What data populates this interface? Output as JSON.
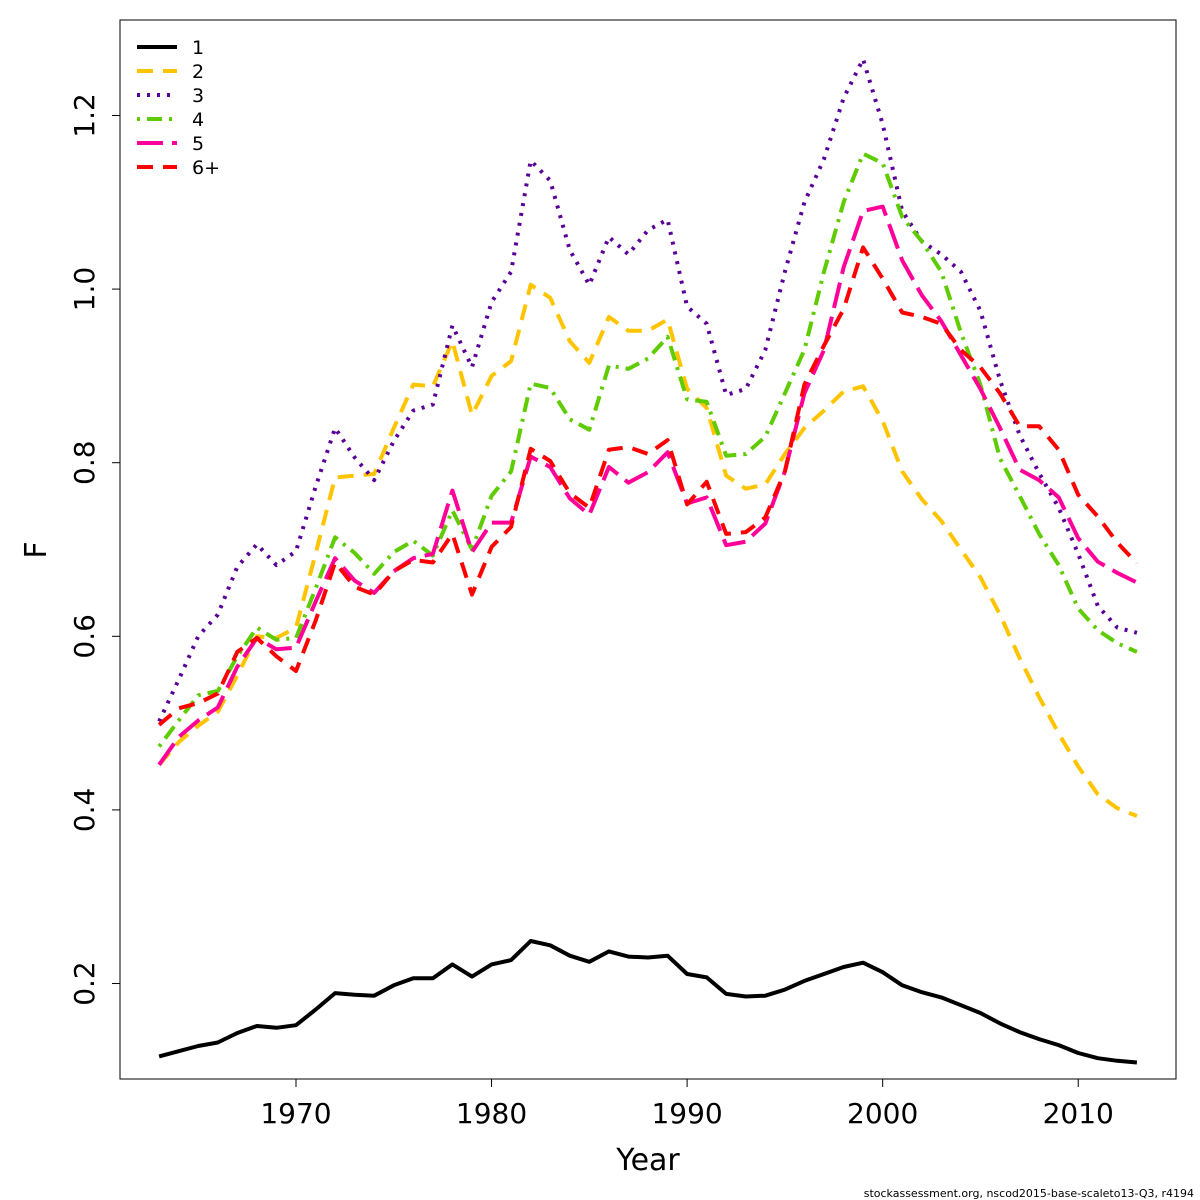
{
  "chart_data": {
    "type": "line",
    "title": "",
    "xlabel": "Year",
    "ylabel": "F",
    "xlim": [
      1961,
      2015
    ],
    "ylim": [
      0.09,
      1.31
    ],
    "x_ticks": [
      1970,
      1980,
      1990,
      2000,
      2010
    ],
    "y_ticks": [
      0.2,
      0.4,
      0.6,
      0.8,
      1.0,
      1.2
    ],
    "x_tick_labels": [
      "1970",
      "1980",
      "1990",
      "2000",
      "2010"
    ],
    "y_tick_labels": [
      "0.2",
      "0.4",
      "0.6",
      "0.8",
      "1.0",
      "1.2"
    ],
    "grid": false,
    "legend_position": "top-left",
    "x": [
      1963,
      1964,
      1965,
      1966,
      1967,
      1968,
      1969,
      1970,
      1971,
      1972,
      1973,
      1974,
      1975,
      1976,
      1977,
      1978,
      1979,
      1980,
      1981,
      1982,
      1983,
      1984,
      1985,
      1986,
      1987,
      1988,
      1989,
      1990,
      1991,
      1992,
      1993,
      1994,
      1995,
      1996,
      1997,
      1998,
      1999,
      2000,
      2001,
      2002,
      2003,
      2004,
      2005,
      2006,
      2007,
      2008,
      2009,
      2010,
      2011,
      2012,
      2013
    ],
    "series": [
      {
        "name": "1",
        "color": "#000000",
        "dash": "solid",
        "values": [
          0.116,
          0.122,
          0.128,
          0.132,
          0.143,
          0.151,
          0.149,
          0.152,
          0.17,
          0.189,
          0.187,
          0.186,
          0.198,
          0.206,
          0.206,
          0.222,
          0.208,
          0.222,
          0.227,
          0.249,
          0.244,
          0.232,
          0.225,
          0.237,
          0.231,
          0.23,
          0.232,
          0.211,
          0.207,
          0.188,
          0.185,
          0.186,
          0.193,
          0.203,
          0.211,
          0.219,
          0.224,
          0.213,
          0.198,
          0.19,
          0.184,
          0.175,
          0.166,
          0.154,
          0.144,
          0.136,
          0.129,
          0.12,
          0.114,
          0.111,
          0.109
        ]
      },
      {
        "name": "2",
        "color": "#FFC400",
        "dash": "dashed",
        "values": [
          0.452,
          0.478,
          0.497,
          0.513,
          0.555,
          0.6,
          0.598,
          0.61,
          0.695,
          0.783,
          0.785,
          0.787,
          0.84,
          0.89,
          0.888,
          0.94,
          0.855,
          0.9,
          0.917,
          1.005,
          0.99,
          0.94,
          0.915,
          0.968,
          0.952,
          0.952,
          0.965,
          0.885,
          0.863,
          0.785,
          0.77,
          0.775,
          0.81,
          0.84,
          0.86,
          0.882,
          0.888,
          0.848,
          0.79,
          0.758,
          0.733,
          0.7,
          0.668,
          0.625,
          0.575,
          0.53,
          0.488,
          0.45,
          0.418,
          0.402,
          0.393
        ]
      },
      {
        "name": "3",
        "color": "#5A0098",
        "dash": "dotted",
        "values": [
          0.502,
          0.55,
          0.6,
          0.625,
          0.68,
          0.706,
          0.682,
          0.698,
          0.772,
          0.84,
          0.806,
          0.78,
          0.825,
          0.86,
          0.867,
          0.958,
          0.91,
          0.985,
          1.02,
          1.148,
          1.125,
          1.045,
          1.005,
          1.06,
          1.04,
          1.068,
          1.08,
          0.98,
          0.96,
          0.878,
          0.885,
          0.93,
          1.02,
          1.1,
          1.15,
          1.22,
          1.265,
          1.19,
          1.09,
          1.055,
          1.04,
          1.02,
          0.975,
          0.895,
          0.832,
          0.788,
          0.748,
          0.695,
          0.635,
          0.61,
          0.604
        ]
      },
      {
        "name": "4",
        "color": "#5ECC00",
        "dash": "dotdash",
        "values": [
          0.473,
          0.503,
          0.532,
          0.537,
          0.577,
          0.61,
          0.596,
          0.598,
          0.655,
          0.714,
          0.696,
          0.672,
          0.697,
          0.71,
          0.693,
          0.745,
          0.7,
          0.762,
          0.79,
          0.891,
          0.886,
          0.85,
          0.838,
          0.912,
          0.908,
          0.92,
          0.945,
          0.873,
          0.87,
          0.808,
          0.81,
          0.83,
          0.88,
          0.93,
          1.02,
          1.1,
          1.156,
          1.145,
          1.083,
          1.055,
          1.02,
          0.95,
          0.89,
          0.805,
          0.762,
          0.718,
          0.682,
          0.632,
          0.607,
          0.592,
          0.582
        ]
      },
      {
        "name": "5",
        "color": "#FF0099",
        "dash": "longdash",
        "values": [
          0.452,
          0.484,
          0.503,
          0.518,
          0.565,
          0.598,
          0.585,
          0.587,
          0.64,
          0.69,
          0.664,
          0.65,
          0.675,
          0.69,
          0.695,
          0.768,
          0.697,
          0.731,
          0.731,
          0.807,
          0.795,
          0.759,
          0.74,
          0.795,
          0.777,
          0.789,
          0.812,
          0.753,
          0.76,
          0.705,
          0.709,
          0.73,
          0.79,
          0.88,
          0.93,
          1.025,
          1.09,
          1.095,
          1.033,
          0.993,
          0.963,
          0.924,
          0.885,
          0.84,
          0.792,
          0.78,
          0.76,
          0.713,
          0.686,
          0.673,
          0.662
        ]
      },
      {
        "name": "6+",
        "color": "#FF0000",
        "dash": "dashed",
        "values": [
          0.498,
          0.517,
          0.523,
          0.534,
          0.582,
          0.598,
          0.577,
          0.56,
          0.618,
          0.685,
          0.657,
          0.648,
          0.675,
          0.688,
          0.685,
          0.718,
          0.648,
          0.703,
          0.726,
          0.816,
          0.802,
          0.765,
          0.748,
          0.815,
          0.818,
          0.81,
          0.826,
          0.752,
          0.778,
          0.718,
          0.72,
          0.737,
          0.79,
          0.89,
          0.935,
          0.977,
          1.048,
          1.012,
          0.973,
          0.968,
          0.96,
          0.93,
          0.91,
          0.88,
          0.842,
          0.842,
          0.815,
          0.763,
          0.738,
          0.708,
          0.684
        ]
      }
    ]
  },
  "footnote": "stockassessment.org, nscod2015-base-scaleto13-Q3, r4194"
}
